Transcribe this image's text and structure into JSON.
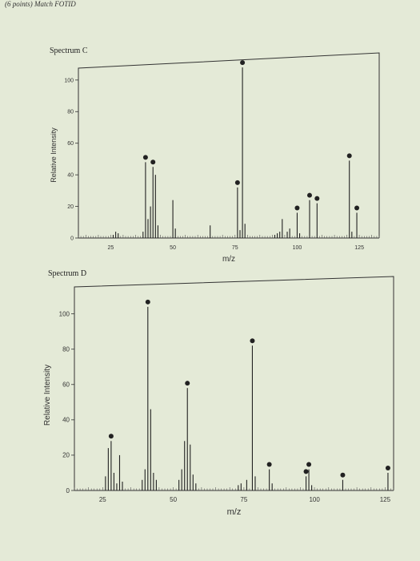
{
  "header": {
    "text": "(6 points) Match FOTID"
  },
  "chart_data": [
    {
      "type": "bar",
      "title": "Spectrum C",
      "xlabel": "m/z",
      "ylabel": "Relative Intensity",
      "xlim": [
        12,
        133
      ],
      "ylim": [
        0,
        105
      ],
      "xticks": [
        25,
        50,
        75,
        100,
        125
      ],
      "yticks": [
        0,
        20,
        40,
        60,
        80,
        100
      ],
      "peaks": [
        {
          "x": 26,
          "y": 2
        },
        {
          "x": 27,
          "y": 4
        },
        {
          "x": 28,
          "y": 3
        },
        {
          "x": 38,
          "y": 4
        },
        {
          "x": 39,
          "y": 48,
          "dot": true
        },
        {
          "x": 40,
          "y": 12
        },
        {
          "x": 41,
          "y": 20
        },
        {
          "x": 42,
          "y": 45,
          "dot": true
        },
        {
          "x": 43,
          "y": 40
        },
        {
          "x": 44,
          "y": 8
        },
        {
          "x": 50,
          "y": 24
        },
        {
          "x": 51,
          "y": 6
        },
        {
          "x": 65,
          "y": 8
        },
        {
          "x": 76,
          "y": 32,
          "dot": true
        },
        {
          "x": 77,
          "y": 5
        },
        {
          "x": 78,
          "y": 108,
          "dot": true
        },
        {
          "x": 79,
          "y": 9
        },
        {
          "x": 91,
          "y": 2
        },
        {
          "x": 92,
          "y": 3
        },
        {
          "x": 93,
          "y": 4
        },
        {
          "x": 94,
          "y": 12
        },
        {
          "x": 96,
          "y": 4
        },
        {
          "x": 97,
          "y": 6
        },
        {
          "x": 100,
          "y": 16,
          "dot": true
        },
        {
          "x": 101,
          "y": 3
        },
        {
          "x": 105,
          "y": 24,
          "dot": true
        },
        {
          "x": 108,
          "y": 22,
          "dot": true
        },
        {
          "x": 121,
          "y": 49,
          "dot": true
        },
        {
          "x": 122,
          "y": 4
        },
        {
          "x": 124,
          "y": 16,
          "dot": true
        }
      ]
    },
    {
      "type": "bar",
      "title": "Spectrum D",
      "xlabel": "m/z",
      "ylabel": "Relative Intensity",
      "xlim": [
        15,
        128
      ],
      "ylim": [
        0,
        108
      ],
      "xticks": [
        25,
        50,
        75,
        100,
        125
      ],
      "yticks": [
        0,
        20,
        40,
        60,
        80,
        100
      ],
      "peaks": [
        {
          "x": 26,
          "y": 8
        },
        {
          "x": 27,
          "y": 24
        },
        {
          "x": 28,
          "y": 28,
          "dot": true
        },
        {
          "x": 29,
          "y": 10
        },
        {
          "x": 30,
          "y": 4
        },
        {
          "x": 31,
          "y": 20
        },
        {
          "x": 32,
          "y": 5
        },
        {
          "x": 39,
          "y": 6
        },
        {
          "x": 40,
          "y": 12
        },
        {
          "x": 41,
          "y": 104,
          "dot": true
        },
        {
          "x": 42,
          "y": 46
        },
        {
          "x": 43,
          "y": 10
        },
        {
          "x": 44,
          "y": 6
        },
        {
          "x": 52,
          "y": 6
        },
        {
          "x": 53,
          "y": 12
        },
        {
          "x": 54,
          "y": 28
        },
        {
          "x": 55,
          "y": 58,
          "dot": true
        },
        {
          "x": 56,
          "y": 26
        },
        {
          "x": 57,
          "y": 9
        },
        {
          "x": 58,
          "y": 4
        },
        {
          "x": 73,
          "y": 3
        },
        {
          "x": 74,
          "y": 4
        },
        {
          "x": 76,
          "y": 6
        },
        {
          "x": 78,
          "y": 82,
          "dot": true
        },
        {
          "x": 79,
          "y": 8
        },
        {
          "x": 84,
          "y": 12,
          "dot": true
        },
        {
          "x": 85,
          "y": 4
        },
        {
          "x": 97,
          "y": 8,
          "dot": true
        },
        {
          "x": 98,
          "y": 12,
          "dot": true
        },
        {
          "x": 99,
          "y": 3
        },
        {
          "x": 110,
          "y": 6,
          "dot": true
        },
        {
          "x": 126,
          "y": 10,
          "dot": true
        }
      ]
    }
  ]
}
